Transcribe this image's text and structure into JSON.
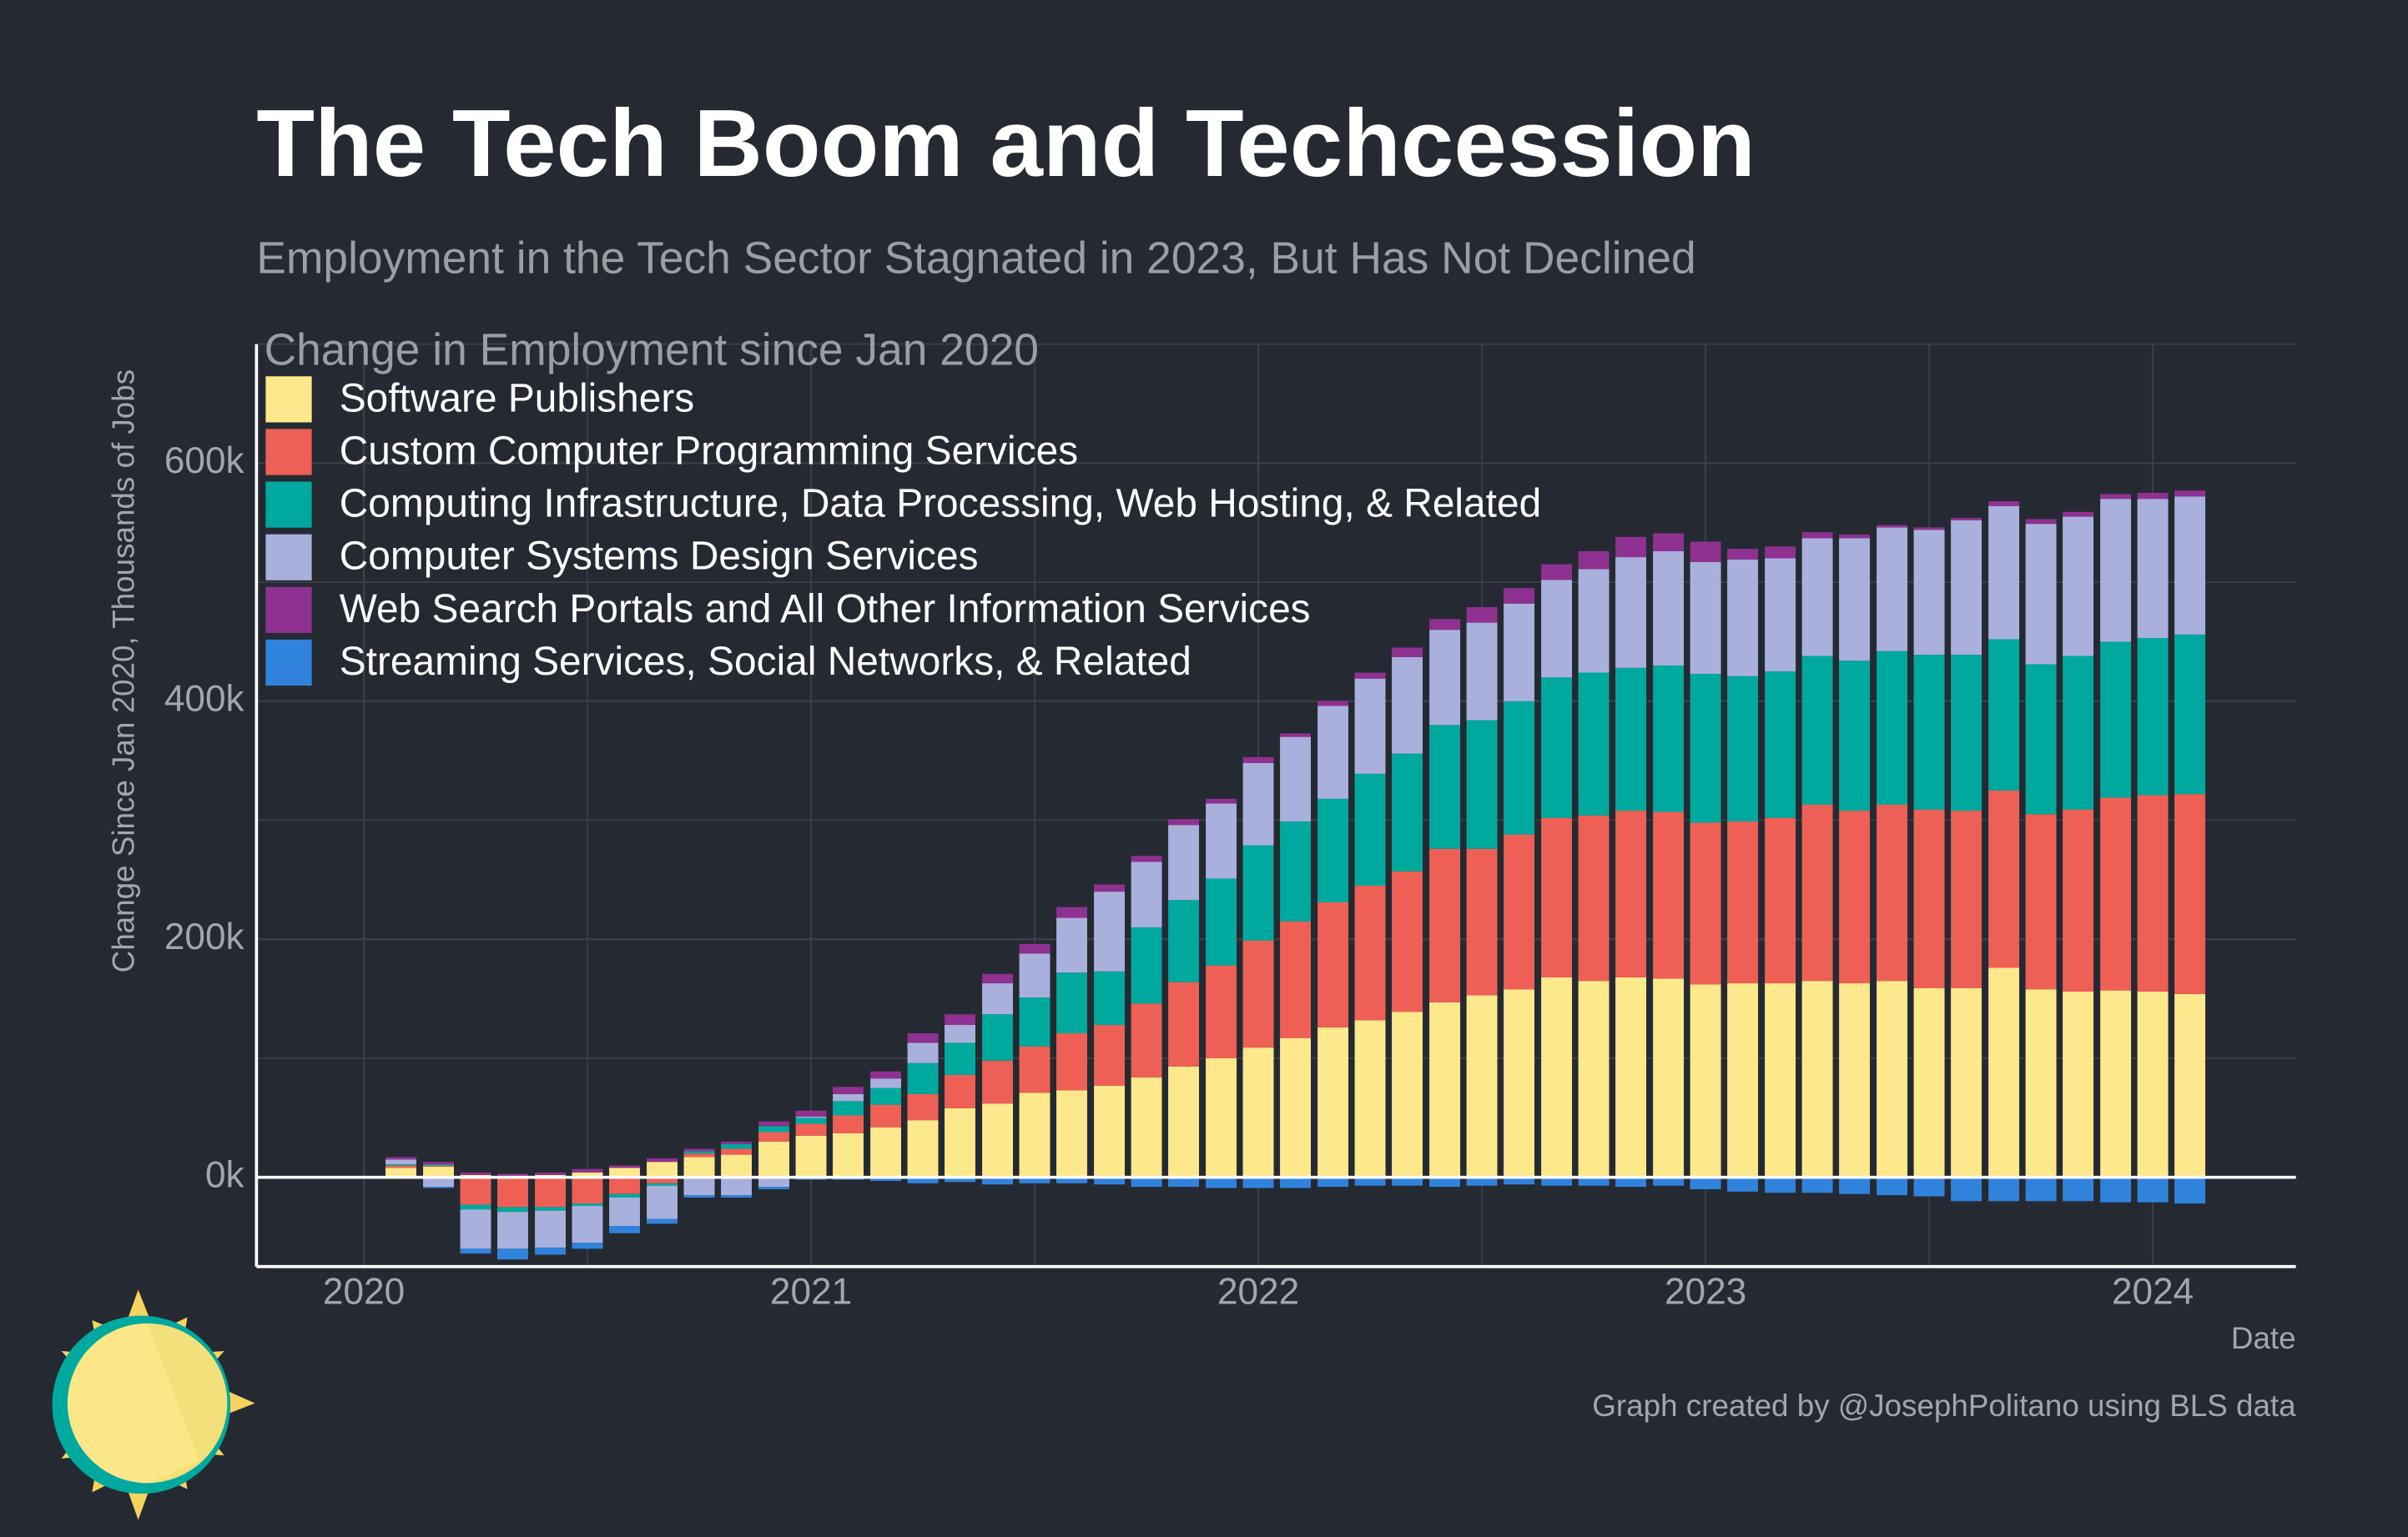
{
  "chart_data": {
    "type": "bar",
    "stacked": true,
    "title": "The Tech Boom and Techcession",
    "subtitle": "Employment in the Tech Sector Stagnated in 2023, But Has Not Declined",
    "legend_title": "Change in Employment since Jan 2020",
    "y_label": "Change Since Jan 2020, Thousands of Jobs",
    "x_label": "Date",
    "caption": "Graph created by @JosephPolitano using BLS data",
    "legend_position": "top-left",
    "grid": true,
    "x": [
      2020.083,
      2020.167,
      2020.25,
      2020.333,
      2020.417,
      2020.5,
      2020.583,
      2020.667,
      2020.75,
      2020.833,
      2020.917,
      2021,
      2021.083,
      2021.167,
      2021.25,
      2021.333,
      2021.417,
      2021.5,
      2021.583,
      2021.667,
      2021.75,
      2021.833,
      2021.917,
      2022,
      2022.083,
      2022.167,
      2022.25,
      2022.333,
      2022.417,
      2022.5,
      2022.583,
      2022.667,
      2022.75,
      2022.833,
      2022.917,
      2023,
      2023.083,
      2023.167,
      2023.25,
      2023.333,
      2023.417,
      2023.5,
      2023.583,
      2023.667,
      2023.75,
      2023.833,
      2023.917,
      2024,
      2024.083
    ],
    "xlim": [
      2019.76,
      2024.32
    ],
    "xticks": [
      2020,
      2021,
      2022,
      2023,
      2024
    ],
    "xminor": [
      2020.5,
      2021.5,
      2022.5,
      2023.5
    ],
    "ylim": [
      -75,
      700
    ],
    "yticks": [
      {
        "value": 0,
        "label": "0k"
      },
      {
        "value": 200,
        "label": "200k"
      },
      {
        "value": 400,
        "label": "400k"
      },
      {
        "value": 600,
        "label": "600k"
      }
    ],
    "yminor": [
      100,
      300,
      500,
      700
    ],
    "series": [
      {
        "name": "Software Publishers",
        "color": "#fee88c",
        "values": [
          8,
          9,
          2,
          1,
          2,
          4,
          8,
          13,
          17,
          19,
          30,
          35,
          37,
          42,
          48,
          58,
          62,
          71,
          73,
          77,
          84,
          93,
          100,
          109,
          117,
          126,
          132,
          139,
          147,
          153,
          158,
          168,
          165,
          168,
          167,
          162,
          163,
          163,
          165,
          163,
          165,
          159,
          159,
          176,
          158,
          156,
          157,
          156,
          154
        ]
      },
      {
        "name": "Custom Computer Programming Services",
        "color": "#ee6055",
        "values": [
          2,
          1,
          -23,
          -25,
          -25,
          -22,
          -14,
          -5,
          3,
          5,
          8,
          10,
          15,
          19,
          22,
          28,
          36,
          39,
          48,
          51,
          62,
          71,
          78,
          90,
          98,
          105,
          113,
          118,
          129,
          123,
          130,
          134,
          139,
          140,
          140,
          136,
          136,
          139,
          148,
          145,
          148,
          150,
          149,
          149,
          147,
          153,
          162,
          165,
          168
        ]
      },
      {
        "name": "Computing Infrastructure, Data Processing, Web Hosting, & Related",
        "color": "#00a99d",
        "values": [
          1,
          1,
          -4,
          -4,
          -3,
          -2,
          -3,
          -2,
          2,
          4,
          5,
          5,
          12,
          14,
          26,
          27,
          39,
          41,
          51,
          45,
          64,
          69,
          73,
          80,
          84,
          87,
          94,
          99,
          104,
          108,
          112,
          118,
          120,
          120,
          123,
          125,
          122,
          123,
          125,
          126,
          129,
          130,
          131,
          127,
          126,
          129,
          131,
          132,
          134
        ]
      },
      {
        "name": "Computer Systems Design Services",
        "color": "#aab0dc",
        "values": [
          4,
          -8,
          -33,
          -31,
          -31,
          -31,
          -24,
          -28,
          -15,
          -15,
          -8,
          1,
          6,
          8,
          17,
          15,
          26,
          37,
          46,
          67,
          55,
          63,
          63,
          69,
          71,
          78,
          80,
          81,
          80,
          82,
          82,
          82,
          87,
          93,
          96,
          94,
          98,
          95,
          99,
          103,
          104,
          105,
          113,
          112,
          118,
          117,
          120,
          117,
          116
        ]
      },
      {
        "name": "Web Search Portals and All Other Information Services",
        "color": "#8e3191",
        "values": [
          2,
          2,
          2,
          2,
          2,
          3,
          2,
          3,
          2,
          2,
          4,
          5,
          6,
          6,
          8,
          9,
          8,
          8,
          9,
          6,
          5,
          5,
          4,
          5,
          3,
          4,
          5,
          8,
          9,
          13,
          13,
          13,
          15,
          17,
          15,
          17,
          9,
          10,
          5,
          3,
          2,
          2,
          2,
          4,
          4,
          4,
          4,
          5,
          5
        ]
      },
      {
        "name": "Streaming Services, Social Networks, & Related",
        "color": "#3083dc",
        "values": [
          0,
          -1,
          -4,
          -9,
          -6,
          -5,
          -6,
          -4,
          -2,
          -2,
          -2,
          -2,
          -2,
          -3,
          -5,
          -4,
          -6,
          -5,
          -5,
          -6,
          -8,
          -8,
          -9,
          -9,
          -9,
          -8,
          -7,
          -7,
          -8,
          -7,
          -6,
          -7,
          -7,
          -8,
          -7,
          -10,
          -12,
          -13,
          -13,
          -14,
          -15,
          -16,
          -20,
          -20,
          -20,
          -20,
          -21,
          -21,
          -22
        ]
      }
    ]
  }
}
